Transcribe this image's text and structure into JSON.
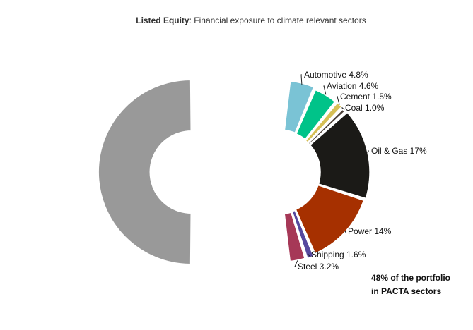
{
  "chart_data": {
    "type": "pie",
    "title_bold": "Listed Equity",
    "title_rest": ": Financial exposure to climate relevant sectors",
    "center_note_line1": "48% of the portfolio",
    "center_note_line2": "in PACTA sectors",
    "other_share_percent": 52,
    "other_color": "#999999",
    "sectors": [
      {
        "name": "Automotive",
        "value": 4.8,
        "label": "Automotive 4.8%",
        "color": "#7ac3d5"
      },
      {
        "name": "Aviation",
        "value": 4.6,
        "label": "Aviation 4.6%",
        "color": "#00c389"
      },
      {
        "name": "Cement",
        "value": 1.5,
        "label": "Cement 1.5%",
        "color": "#d6bf55"
      },
      {
        "name": "Coal",
        "value": 1.0,
        "label": "Coal 1.0%",
        "color": "#4a3f38"
      },
      {
        "name": "Oil & Gas",
        "value": 17,
        "label": "Oil & Gas 17%",
        "color": "#1b1a17"
      },
      {
        "name": "Power",
        "value": 14,
        "label": "Power 14%",
        "color": "#a63000"
      },
      {
        "name": "Shipping",
        "value": 1.6,
        "label": "Shipping 1.6%",
        "color": "#55489e"
      },
      {
        "name": "Steel",
        "value": 3.2,
        "label": "Steel 3.2%",
        "color": "#a63857"
      }
    ]
  }
}
